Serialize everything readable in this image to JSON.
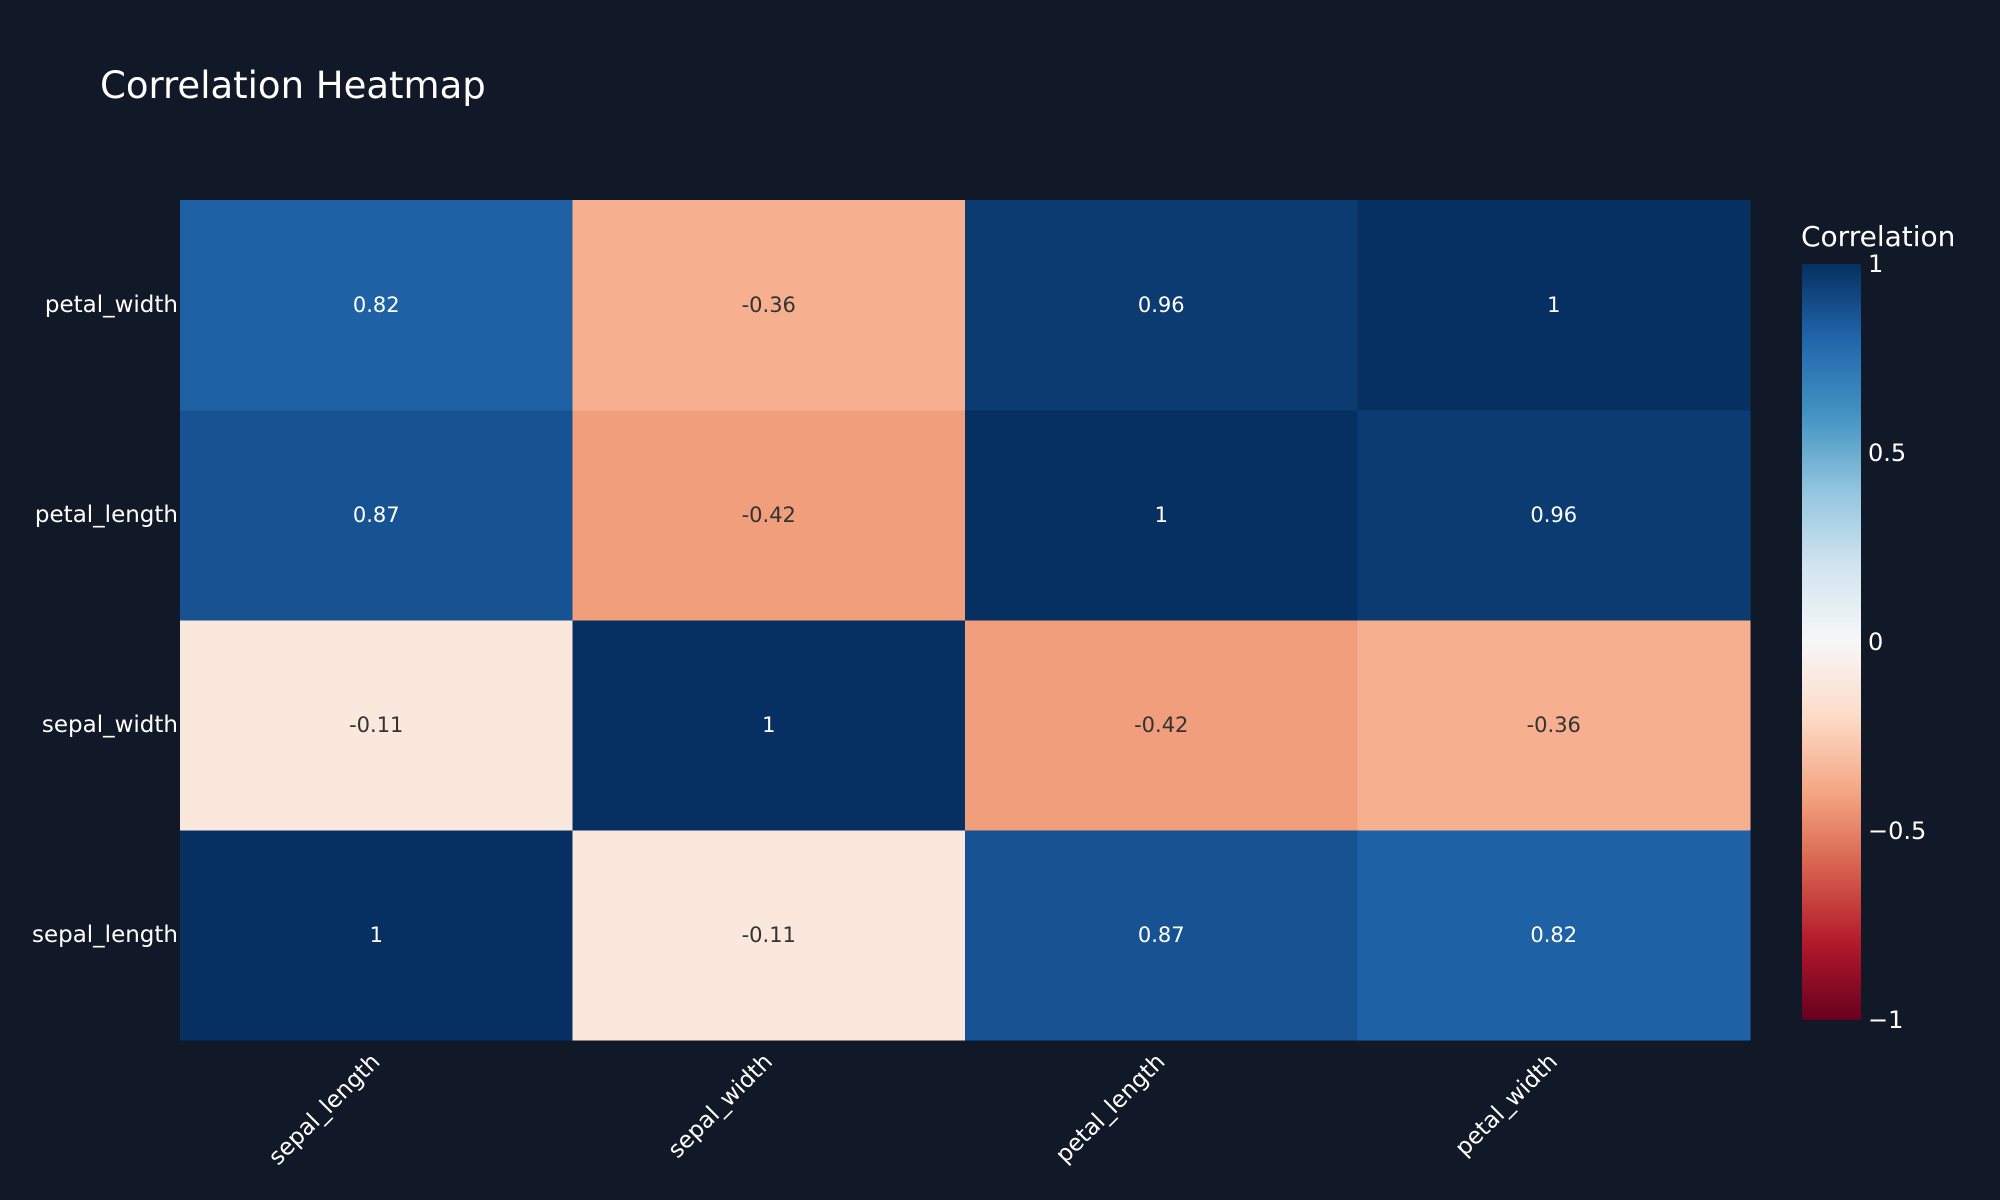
{
  "chart_data": {
    "type": "heatmap",
    "title": "Correlation Heatmap",
    "x_categories": [
      "sepal_length",
      "sepal_width",
      "petal_length",
      "petal_width"
    ],
    "y_categories": [
      "sepal_length",
      "sepal_width",
      "petal_length",
      "petal_width"
    ],
    "z": [
      [
        1,
        -0.11,
        0.87,
        0.82
      ],
      [
        -0.11,
        1,
        -0.42,
        -0.36
      ],
      [
        0.87,
        -0.42,
        1,
        0.96
      ],
      [
        0.82,
        -0.36,
        0.96,
        1
      ]
    ],
    "text": [
      [
        "1",
        "-0.11",
        "0.87",
        "0.82"
      ],
      [
        "-0.11",
        "1",
        "-0.42",
        "-0.36"
      ],
      [
        "0.87",
        "-0.42",
        "1",
        "0.96"
      ],
      [
        "0.82",
        "-0.36",
        "0.96",
        "1"
      ]
    ],
    "zmin": -1,
    "zmax": 1,
    "colorscale": "RdBu",
    "colorscale_stops": [
      [
        0,
        "#67001f"
      ],
      [
        0.1,
        "#b2182b"
      ],
      [
        0.2,
        "#d6604d"
      ],
      [
        0.3,
        "#f4a582"
      ],
      [
        0.4,
        "#fddbc7"
      ],
      [
        0.5,
        "#f7f7f7"
      ],
      [
        0.6,
        "#d1e5f0"
      ],
      [
        0.7,
        "#92c5de"
      ],
      [
        0.8,
        "#4393c3"
      ],
      [
        0.9,
        "#2166ac"
      ],
      [
        1,
        "#053061"
      ]
    ],
    "colorbar": {
      "title": "Correlation",
      "tickvals": [
        1,
        0.5,
        0,
        -0.5,
        -1
      ],
      "ticktext": [
        "1",
        "0.5",
        "0",
        "−0.5",
        "−1"
      ]
    },
    "xlabel_rotation": "-45",
    "background_color": "#111827"
  }
}
